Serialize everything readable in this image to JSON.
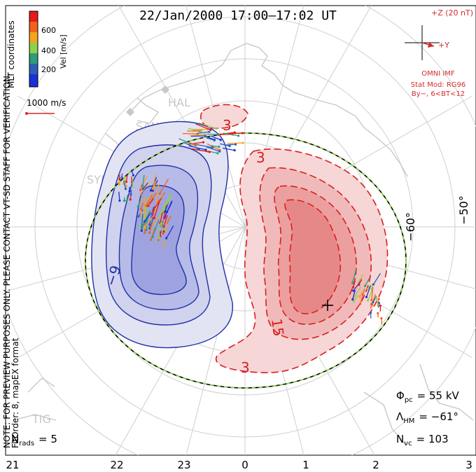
{
  "title": "22/Jan/2000 17:00–17:02 UT",
  "side_notes": {
    "preview": "NOTE: FOR PREVIEW PURPOSES ONLY. PLEASE CONTACT VT-SD STAFF FOR VERIFICATION.",
    "fit": "FitOrder: 8, mapEX format",
    "coords": "MLT coordinates"
  },
  "colorbar": {
    "label": "Vel [m/s]",
    "ticks": [
      "600",
      "400",
      "200"
    ],
    "colors": [
      "#e8191c",
      "#f2611c",
      "#f5a51c",
      "#8fd24a",
      "#2e9c7a",
      "#2c5fb4",
      "#1a2fd8"
    ]
  },
  "ref_vector": {
    "label": "1000 m/s",
    "color": "#d42a2a"
  },
  "imf": {
    "z_label": "+Z (20 nT)",
    "y_label": "+Y",
    "source": "OMNI IMF",
    "model": "Stat Mod: RG96",
    "conditions": "By−, 6<BT<12",
    "color": "#d42a2a"
  },
  "stations": [
    "HAL",
    "SAN",
    "SYE",
    "TIG"
  ],
  "latitude_labels": [
    "−60°",
    "−50°"
  ],
  "contour_labels": {
    "negative": "−9",
    "positive": [
      "3",
      "3",
      "3",
      "15"
    ]
  },
  "stats": {
    "phi_pc": "Φ",
    "phi_pc_sub": "pc",
    "phi_pc_value": "= 55 kV",
    "lambda_hm": "Λ",
    "lambda_hm_sub": "HM",
    "lambda_hm_value": "= −61°",
    "n_vc": "N",
    "n_vc_sub": "vc",
    "n_vc_value": "= 103",
    "n_rads": "N",
    "n_rads_sub": "rads",
    "n_rads_value": "= 5"
  },
  "mlt_axis": [
    "21",
    "22",
    "23",
    "0",
    "1",
    "2",
    "3"
  ],
  "colors": {
    "negative_cell": "#1f2fa8",
    "positive_cell": "#d82020",
    "boundary_green": "#8fd24a",
    "coast": "#c8c8c8",
    "grid": "#cfcfcf"
  }
}
